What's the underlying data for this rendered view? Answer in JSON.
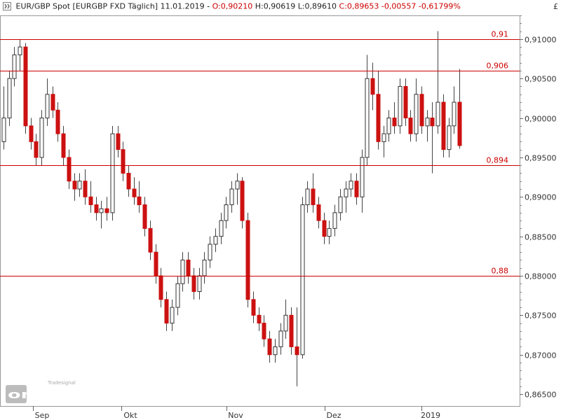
{
  "header": {
    "instrument": "EUR/GBP Spot [EURGBP FXD  Täglich]",
    "date": "11.01.2019",
    "open": "O:0,90210",
    "high": "H:0,90619",
    "low": "L:0,89610",
    "close_change": "C:0,89653 -0,00557 -0,61799%",
    "currency": "£"
  },
  "logo": {
    "brand": "Tradesignal",
    "name": "online"
  },
  "colors": {
    "up_fill": "#ffffff",
    "down_fill": "#cc1111",
    "wick": "#444444",
    "level_line": "#cc0000",
    "grid": "#dddddd"
  },
  "chart_data": {
    "type": "candlestick",
    "y_axis": {
      "min": 0.8635,
      "max": 0.913,
      "ticks": [
        "0,86500",
        "0,87000",
        "0,87500",
        "0,88000",
        "0,88500",
        "0,89000",
        "0,89500",
        "0,90000",
        "0,90500",
        "0,91000"
      ],
      "side": "right"
    },
    "x_axis": {
      "labels": [
        "Sep",
        "Okt",
        "Nov",
        "Dez",
        "2019"
      ]
    },
    "levels": [
      {
        "label": "0,91",
        "value": 0.91
      },
      {
        "label": "0,906",
        "value": 0.906
      },
      {
        "label": "0,894",
        "value": 0.894
      },
      {
        "label": "0,88",
        "value": 0.88
      }
    ],
    "candles": [
      [
        0.897,
        0.904,
        0.896,
        0.9
      ],
      [
        0.9,
        0.906,
        0.899,
        0.905
      ],
      [
        0.905,
        0.909,
        0.904,
        0.908
      ],
      [
        0.908,
        0.91,
        0.906,
        0.909
      ],
      [
        0.909,
        0.9095,
        0.898,
        0.899
      ],
      [
        0.899,
        0.9,
        0.896,
        0.897
      ],
      [
        0.897,
        0.898,
        0.894,
        0.895
      ],
      [
        0.895,
        0.901,
        0.894,
        0.9
      ],
      [
        0.9,
        0.905,
        0.899,
        0.903
      ],
      [
        0.903,
        0.904,
        0.9,
        0.901
      ],
      [
        0.901,
        0.902,
        0.897,
        0.898
      ],
      [
        0.898,
        0.899,
        0.894,
        0.895
      ],
      [
        0.895,
        0.896,
        0.891,
        0.892
      ],
      [
        0.892,
        0.893,
        0.8895,
        0.891
      ],
      [
        0.891,
        0.893,
        0.89,
        0.892
      ],
      [
        0.892,
        0.8935,
        0.889,
        0.89
      ],
      [
        0.89,
        0.892,
        0.888,
        0.889
      ],
      [
        0.889,
        0.89,
        0.887,
        0.888
      ],
      [
        0.888,
        0.8895,
        0.886,
        0.8885
      ],
      [
        0.8885,
        0.89,
        0.887,
        0.888
      ],
      [
        0.888,
        0.899,
        0.887,
        0.898
      ],
      [
        0.898,
        0.899,
        0.895,
        0.896
      ],
      [
        0.896,
        0.897,
        0.892,
        0.893
      ],
      [
        0.893,
        0.894,
        0.89,
        0.891
      ],
      [
        0.891,
        0.8925,
        0.889,
        0.89
      ],
      [
        0.89,
        0.892,
        0.888,
        0.889
      ],
      [
        0.889,
        0.89,
        0.885,
        0.886
      ],
      [
        0.886,
        0.887,
        0.882,
        0.883
      ],
      [
        0.883,
        0.884,
        0.879,
        0.88
      ],
      [
        0.88,
        0.881,
        0.876,
        0.877
      ],
      [
        0.877,
        0.878,
        0.873,
        0.874
      ],
      [
        0.874,
        0.877,
        0.873,
        0.876
      ],
      [
        0.876,
        0.88,
        0.875,
        0.879
      ],
      [
        0.879,
        0.883,
        0.878,
        0.882
      ],
      [
        0.882,
        0.883,
        0.879,
        0.88
      ],
      [
        0.88,
        0.881,
        0.877,
        0.878
      ],
      [
        0.878,
        0.881,
        0.877,
        0.88
      ],
      [
        0.88,
        0.883,
        0.879,
        0.882
      ],
      [
        0.882,
        0.885,
        0.881,
        0.884
      ],
      [
        0.884,
        0.886,
        0.883,
        0.885
      ],
      [
        0.885,
        0.888,
        0.884,
        0.887
      ],
      [
        0.887,
        0.89,
        0.886,
        0.889
      ],
      [
        0.889,
        0.892,
        0.888,
        0.891
      ],
      [
        0.891,
        0.893,
        0.889,
        0.892
      ],
      [
        0.892,
        0.8925,
        0.886,
        0.887
      ],
      [
        0.887,
        0.888,
        0.876,
        0.877
      ],
      [
        0.877,
        0.878,
        0.874,
        0.875
      ],
      [
        0.875,
        0.876,
        0.873,
        0.874
      ],
      [
        0.874,
        0.875,
        0.871,
        0.872
      ],
      [
        0.872,
        0.873,
        0.869,
        0.87
      ],
      [
        0.87,
        0.872,
        0.869,
        0.871
      ],
      [
        0.871,
        0.874,
        0.87,
        0.873
      ],
      [
        0.873,
        0.877,
        0.872,
        0.875
      ],
      [
        0.875,
        0.876,
        0.87,
        0.871
      ],
      [
        0.871,
        0.876,
        0.866,
        0.87
      ],
      [
        0.87,
        0.89,
        0.8695,
        0.889
      ],
      [
        0.889,
        0.892,
        0.888,
        0.891
      ],
      [
        0.891,
        0.893,
        0.888,
        0.889
      ],
      [
        0.889,
        0.89,
        0.886,
        0.887
      ],
      [
        0.887,
        0.888,
        0.884,
        0.885
      ],
      [
        0.885,
        0.887,
        0.884,
        0.886
      ],
      [
        0.886,
        0.889,
        0.885,
        0.888
      ],
      [
        0.888,
        0.891,
        0.887,
        0.89
      ],
      [
        0.89,
        0.892,
        0.888,
        0.891
      ],
      [
        0.891,
        0.893,
        0.89,
        0.892
      ],
      [
        0.892,
        0.893,
        0.889,
        0.89
      ],
      [
        0.89,
        0.896,
        0.888,
        0.895
      ],
      [
        0.895,
        0.908,
        0.894,
        0.905
      ],
      [
        0.905,
        0.907,
        0.901,
        0.903
      ],
      [
        0.903,
        0.906,
        0.896,
        0.897
      ],
      [
        0.897,
        0.899,
        0.895,
        0.898
      ],
      [
        0.898,
        0.901,
        0.897,
        0.9
      ],
      [
        0.9,
        0.902,
        0.898,
        0.899
      ],
      [
        0.899,
        0.905,
        0.898,
        0.904
      ],
      [
        0.904,
        0.905,
        0.899,
        0.9
      ],
      [
        0.9,
        0.901,
        0.897,
        0.898
      ],
      [
        0.898,
        0.905,
        0.897,
        0.903
      ],
      [
        0.903,
        0.904,
        0.898,
        0.899
      ],
      [
        0.899,
        0.901,
        0.897,
        0.9
      ],
      [
        0.9,
        0.902,
        0.893,
        0.899
      ],
      [
        0.899,
        0.911,
        0.898,
        0.902
      ],
      [
        0.902,
        0.903,
        0.895,
        0.896
      ],
      [
        0.896,
        0.9,
        0.895,
        0.899
      ],
      [
        0.899,
        0.904,
        0.898,
        0.902
      ],
      [
        0.902,
        0.9062,
        0.8961,
        0.8965
      ]
    ]
  }
}
